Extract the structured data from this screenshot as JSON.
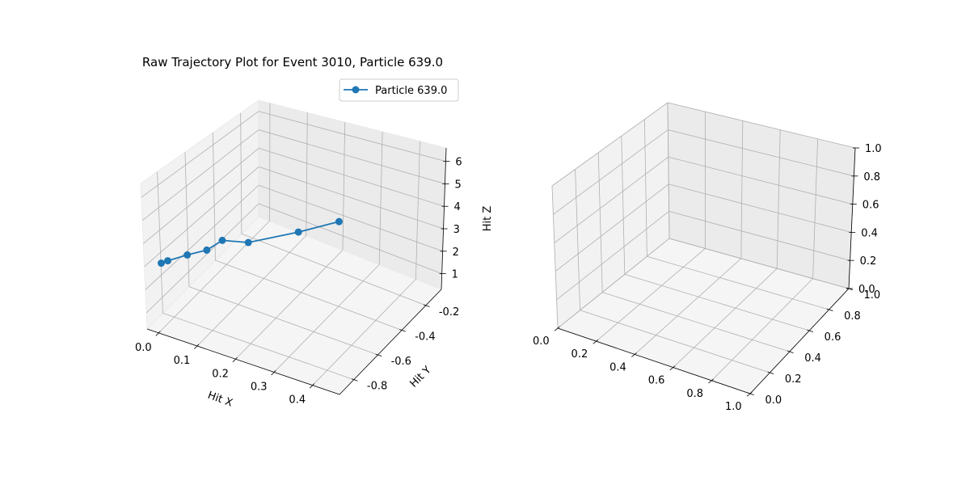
{
  "chart_data": [
    {
      "type": "line",
      "projection": "3d",
      "title": "Raw Trajectory Plot for Event 3010, Particle 639.0",
      "xlabel": "Hit X",
      "ylabel": "Hit Y",
      "zlabel": "Hit Z",
      "xticks": [
        "0.0",
        "0.1",
        "0.2",
        "0.3",
        "0.4"
      ],
      "yticks": [
        "-0.8",
        "-0.6",
        "-0.4",
        "-0.2"
      ],
      "zticks": [
        "1",
        "2",
        "3",
        "4",
        "5",
        "6"
      ],
      "xlim": [
        -0.03,
        0.47
      ],
      "ylim": [
        -0.92,
        -0.07
      ],
      "zlim": [
        0.3,
        6.6
      ],
      "grid": true,
      "legend_position": "upper-right",
      "series": [
        {
          "name": "Particle 639.0",
          "color": "#1f77b4",
          "marker": "circle",
          "x": [
            0.0,
            0.01,
            0.04,
            0.07,
            0.09,
            0.13,
            0.2,
            0.26
          ],
          "y": [
            -0.88,
            -0.86,
            -0.8,
            -0.74,
            -0.68,
            -0.6,
            -0.42,
            -0.28
          ],
          "z": [
            3.12,
            3.18,
            3.3,
            3.38,
            3.62,
            3.33,
            3.24,
            3.3
          ]
        }
      ]
    },
    {
      "type": "line",
      "projection": "3d",
      "title": "",
      "xlabel": "",
      "ylabel": "",
      "zlabel": "",
      "xticks": [
        "0.0",
        "0.2",
        "0.4",
        "0.6",
        "0.8",
        "1.0"
      ],
      "yticks": [
        "0.0",
        "0.2",
        "0.4",
        "0.6",
        "0.8",
        "1.0"
      ],
      "zticks": [
        "0.0",
        "0.2",
        "0.4",
        "0.6",
        "0.8",
        "1.0"
      ],
      "xlim": [
        0,
        1
      ],
      "ylim": [
        0,
        1
      ],
      "zlim": [
        0,
        1
      ],
      "grid": true,
      "series": []
    }
  ]
}
